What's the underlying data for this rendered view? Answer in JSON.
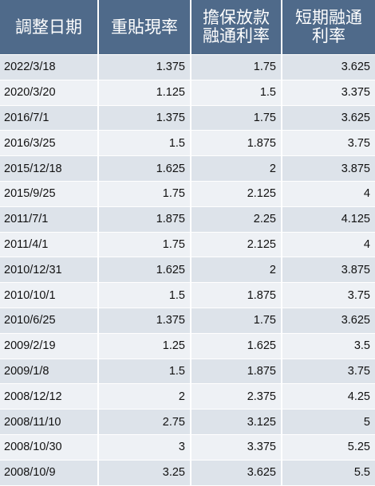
{
  "table": {
    "headers": [
      {
        "lines": [
          "調整日期"
        ]
      },
      {
        "lines": [
          "重貼現率"
        ]
      },
      {
        "lines": [
          "擔保放款",
          "融通利率"
        ]
      },
      {
        "lines": [
          "短期融通",
          "利率"
        ]
      }
    ],
    "rows": [
      [
        "2022/3/18",
        "1.375",
        "1.75",
        "3.625"
      ],
      [
        "2020/3/20",
        "1.125",
        "1.5",
        "3.375"
      ],
      [
        "2016/7/1",
        "1.375",
        "1.75",
        "3.625"
      ],
      [
        "2016/3/25",
        "1.5",
        "1.875",
        "3.75"
      ],
      [
        "2015/12/18",
        "1.625",
        "2",
        "3.875"
      ],
      [
        "2015/9/25",
        "1.75",
        "2.125",
        "4"
      ],
      [
        "2011/7/1",
        "1.875",
        "2.25",
        "4.125"
      ],
      [
        "2011/4/1",
        "1.75",
        "2.125",
        "4"
      ],
      [
        "2010/12/31",
        "1.625",
        "2",
        "3.875"
      ],
      [
        "2010/10/1",
        "1.5",
        "1.875",
        "3.75"
      ],
      [
        "2010/6/25",
        "1.375",
        "1.75",
        "3.625"
      ],
      [
        "2009/2/19",
        "1.25",
        "1.625",
        "3.5"
      ],
      [
        "2009/1/8",
        "1.5",
        "1.875",
        "3.75"
      ],
      [
        "2008/12/12",
        "2",
        "2.375",
        "4.25"
      ],
      [
        "2008/11/10",
        "2.75",
        "3.125",
        "5"
      ],
      [
        "2008/10/30",
        "3",
        "3.375",
        "5.25"
      ],
      [
        "2008/10/9",
        "3.25",
        "3.625",
        "5.5"
      ]
    ]
  },
  "colors": {
    "header_bg": "#4f6a8a",
    "header_text": "#ffffff",
    "row_odd": "#dde3ea",
    "row_even": "#eef1f5"
  }
}
